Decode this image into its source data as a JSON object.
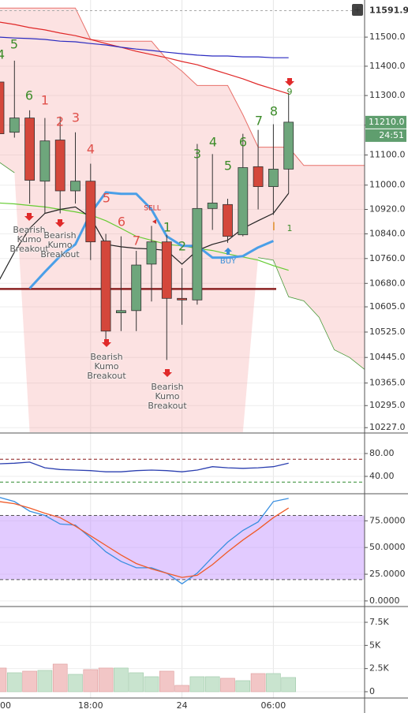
{
  "chart_data": [
    {
      "type": "candlestick",
      "log_scale": true,
      "grid": true,
      "categories": [
        "00",
        null,
        null,
        null,
        null,
        null,
        "18:00",
        null,
        null,
        null,
        null,
        null,
        "24",
        null,
        null,
        null,
        null,
        null,
        "06:00",
        null,
        null,
        null,
        null,
        null,
        null
      ],
      "ylim": [
        10213,
        11629
      ],
      "yticks": [
        {
          "value": 11500,
          "label": "11500.0"
        },
        {
          "value": 11400,
          "label": "11400.0"
        },
        {
          "value": 11300,
          "label": "11300.0"
        },
        {
          "value": 11200,
          "label": "11200.0"
        },
        {
          "value": 11100,
          "label": "11100.0"
        },
        {
          "value": 11000,
          "label": "11000.0"
        },
        {
          "value": 10920,
          "label": "10920.0"
        },
        {
          "value": 10840,
          "label": "10840.0"
        },
        {
          "value": 10760,
          "label": "10760.0"
        },
        {
          "value": 10680,
          "label": "10680.0"
        },
        {
          "value": 10605,
          "label": "10605.0"
        },
        {
          "value": 10525,
          "label": "10525.0"
        },
        {
          "value": 10445,
          "label": "10445.0"
        },
        {
          "value": 10365,
          "label": "10365.0"
        },
        {
          "value": 10295,
          "label": "10295.0"
        },
        {
          "value": 10227,
          "label": "10227.0"
        }
      ],
      "up_color": "#6ea67c",
      "down_color": "#d4473b",
      "open": [
        11346,
        11176,
        11224,
        11013,
        11150,
        10981,
        11013,
        10817,
        10586,
        10593,
        10742,
        10814,
        10632,
        10627,
        10923,
        10936,
        10837,
        11061,
        10995,
        11053,
        null,
        null,
        null,
        null,
        null
      ],
      "high": [
        11370,
        11419,
        11250,
        11224,
        11229,
        11176,
        11071,
        10840,
        10832,
        10785,
        10866,
        10837,
        10729,
        11137,
        11103,
        10955,
        11171,
        11184,
        11203,
        11308,
        null,
        null,
        null,
        null,
        null
      ],
      "low": [
        11158,
        11158,
        10939,
        10907,
        10907,
        10939,
        10755,
        10494,
        10528,
        10528,
        10622,
        10437,
        10548,
        10612,
        10853,
        10811,
        10832,
        10920,
        10902,
        10973,
        null,
        null,
        null,
        null,
        null
      ],
      "close": [
        11171,
        11224,
        11016,
        11147,
        10981,
        11013,
        10814,
        10528,
        10593,
        10739,
        10814,
        10632,
        10627,
        10923,
        10941,
        10832,
        11058,
        10995,
        11053,
        11210,
        null,
        null,
        null,
        null,
        null
      ],
      "cloud": {
        "color": "rgba(244,150,150,0.28)",
        "upper_color": "#e8706a",
        "lower_color": "#4a9a3a",
        "upper": [
          11601,
          11601,
          11601,
          11601,
          11601,
          11601,
          11492,
          11486,
          11486,
          11486,
          11486,
          11424,
          11383,
          11334,
          11334,
          11334,
          11235,
          11126,
          11126,
          11126,
          11065,
          11065,
          11065,
          11065,
          11065
        ],
        "lower": [
          11076,
          11041,
          null,
          null,
          null,
          null,
          null,
          null,
          null,
          null,
          null,
          null,
          null,
          null,
          null,
          null,
          null,
          10763,
          10755,
          10637,
          10624,
          10572,
          10469,
          10445,
          10407
        ]
      },
      "lines": [
        {
          "color": "#e02828",
          "width": 1.2,
          "values": [
            11552,
            11544,
            11533,
            11525,
            11514,
            11505,
            11492,
            11478,
            11465,
            11451,
            11440,
            11429,
            11416,
            11405,
            11389,
            11373,
            11357,
            11338,
            11322,
            11306,
            null,
            null,
            null,
            null,
            null
          ]
        },
        {
          "color": "#2a2ac0",
          "width": 1.2,
          "values": [
            11500,
            11497,
            11495,
            11492,
            11486,
            11484,
            11478,
            11473,
            11465,
            11459,
            11454,
            11448,
            11443,
            11438,
            11435,
            11435,
            11432,
            11432,
            11429,
            11429,
            null,
            null,
            null,
            null,
            null
          ]
        },
        {
          "color": "#66cc33",
          "width": 1.2,
          "values": [
            10941,
            10938,
            10933,
            10928,
            10920,
            10912,
            10902,
            10883,
            10858,
            10832,
            10819,
            10806,
            10801,
            10793,
            10786,
            10775,
            10765,
            10755,
            10737,
            10722,
            null,
            null,
            null,
            null,
            null
          ]
        },
        {
          "color": "#222222",
          "width": 1.2,
          "values": [
            10690,
            10781,
            10858,
            10907,
            10920,
            10928,
            10894,
            10806,
            10798,
            10793,
            10791,
            10786,
            10742,
            10786,
            10806,
            10819,
            10858,
            10883,
            10907,
            10973,
            null,
            null,
            null,
            null,
            null
          ]
        },
        {
          "color": "#4a9fe8",
          "width": 3,
          "values": [
            null,
            null,
            10664,
            10717,
            10768,
            10806,
            10907,
            10976,
            10971,
            10971,
            10920,
            10832,
            10801,
            10801,
            10763,
            10763,
            10768,
            10796,
            10817,
            null,
            null,
            null,
            null,
            null,
            null
          ]
        }
      ],
      "level": {
        "value": 10662,
        "color": "#8b2323"
      },
      "annotations": [
        {
          "text": "4",
          "color": "#3d8c2a"
        },
        {
          "text": "5",
          "color": "#3d8c2a"
        },
        {
          "text": "6",
          "color": "#3d8c2a"
        },
        {
          "text": "1",
          "color": "#e0504a"
        },
        {
          "text": "2",
          "color": "#e0504a"
        },
        {
          "text": "3",
          "color": "#e0504a"
        },
        {
          "text": "4",
          "color": "#e0504a"
        },
        {
          "text": "5",
          "color": "#e0504a"
        },
        {
          "text": "6",
          "color": "#e0504a"
        },
        {
          "text": "7",
          "color": "#e0504a"
        },
        {
          "text": "1",
          "color": "#3d8c2a"
        },
        {
          "text": "2",
          "color": "#3d8c2a"
        },
        {
          "text": "3",
          "color": "#3d8c2a"
        },
        {
          "text": "4",
          "color": "#3d8c2a"
        },
        {
          "text": "5",
          "color": "#3d8c2a"
        },
        {
          "text": "6",
          "color": "#3d8c2a"
        },
        {
          "text": "7",
          "color": "#3d8c2a"
        },
        {
          "text": "8",
          "color": "#3d8c2a"
        },
        {
          "text": "9",
          "color": "#3d8c2a"
        },
        {
          "text": "I",
          "color": "#e08a1e"
        },
        {
          "text": "1",
          "color": "#3d8c2a"
        },
        {
          "text": "SELL",
          "color": "#d03030"
        },
        {
          "text": "BUY",
          "color": "#3a8fd8"
        },
        {
          "text": "Bearish Kumo Breakout",
          "color": "#555555"
        },
        {
          "text": "Bearish Kumo Breakout",
          "color": "#555555"
        },
        {
          "text": "Bearish Kumo Breakout",
          "color": "#555555"
        },
        {
          "text": "Bearish Kumo Breakout",
          "color": "#555555"
        }
      ],
      "last_price": {
        "value": 11210,
        "label": "11210.0"
      },
      "countdown": "24:51",
      "high_marker": 11591.9
    },
    {
      "type": "line",
      "grid": true,
      "ylim": [
        11,
        114.5
      ],
      "yticks": [
        {
          "value": 80,
          "label": "80.00"
        },
        {
          "value": 40,
          "label": "40.00"
        }
      ],
      "levels": [
        {
          "value": 70,
          "color": "#8b1a1a"
        },
        {
          "value": 30,
          "color": "#2e8b2e"
        }
      ],
      "series": [
        {
          "color": "#2b3fb0",
          "values": [
            62,
            63,
            65,
            55,
            52,
            51,
            50,
            48,
            48,
            50,
            51,
            50,
            48,
            51,
            57,
            55,
            54,
            55,
            57,
            63,
            null,
            null,
            null,
            null,
            null
          ]
        }
      ]
    },
    {
      "type": "line",
      "grid": true,
      "ylim": [
        -4.5,
        99.6
      ],
      "yticks": [
        {
          "value": 75,
          "label": "75.0000"
        },
        {
          "value": 50,
          "label": "50.0000"
        },
        {
          "value": 25,
          "label": "25.0000"
        },
        {
          "value": 0,
          "label": "0.0000"
        }
      ],
      "band": {
        "from": 20,
        "to": 80,
        "color": "rgba(190,140,255,0.45)"
      },
      "levels": [
        {
          "value": 80,
          "color": "#555555"
        },
        {
          "value": 20,
          "color": "#555555"
        }
      ],
      "series": [
        {
          "color": "#3a8fe0",
          "values": [
            97,
            93,
            84,
            80,
            72,
            71,
            59,
            46,
            37,
            31,
            31,
            26,
            16,
            26,
            41,
            55,
            66,
            74,
            93,
            96,
            null,
            null,
            null,
            null,
            null
          ]
        },
        {
          "color": "#f05a28",
          "values": [
            93,
            91,
            87,
            82,
            78,
            70,
            61,
            52,
            43,
            35,
            30,
            26,
            22,
            24,
            34,
            46,
            57,
            67,
            78,
            87,
            null,
            null,
            null,
            null,
            null
          ]
        }
      ]
    },
    {
      "type": "bar",
      "grid": true,
      "ylim": [
        -683,
        9121
      ],
      "yticks": [
        {
          "value": 7500,
          "label": "7.5K"
        },
        {
          "value": 5000,
          "label": "5K"
        },
        {
          "value": 2500,
          "label": "2.5K"
        },
        0
      ],
      "up_color": "#c9e4cf",
      "down_color": "#f2c6c6",
      "values": [
        2560,
        2048,
        2218,
        2304,
        2986,
        1877,
        2389,
        2560,
        2560,
        2048,
        1621,
        2218,
        683,
        1621,
        1621,
        1451,
        1195,
        1962,
        1962,
        1536,
        null,
        null,
        null,
        null,
        null
      ]
    }
  ]
}
